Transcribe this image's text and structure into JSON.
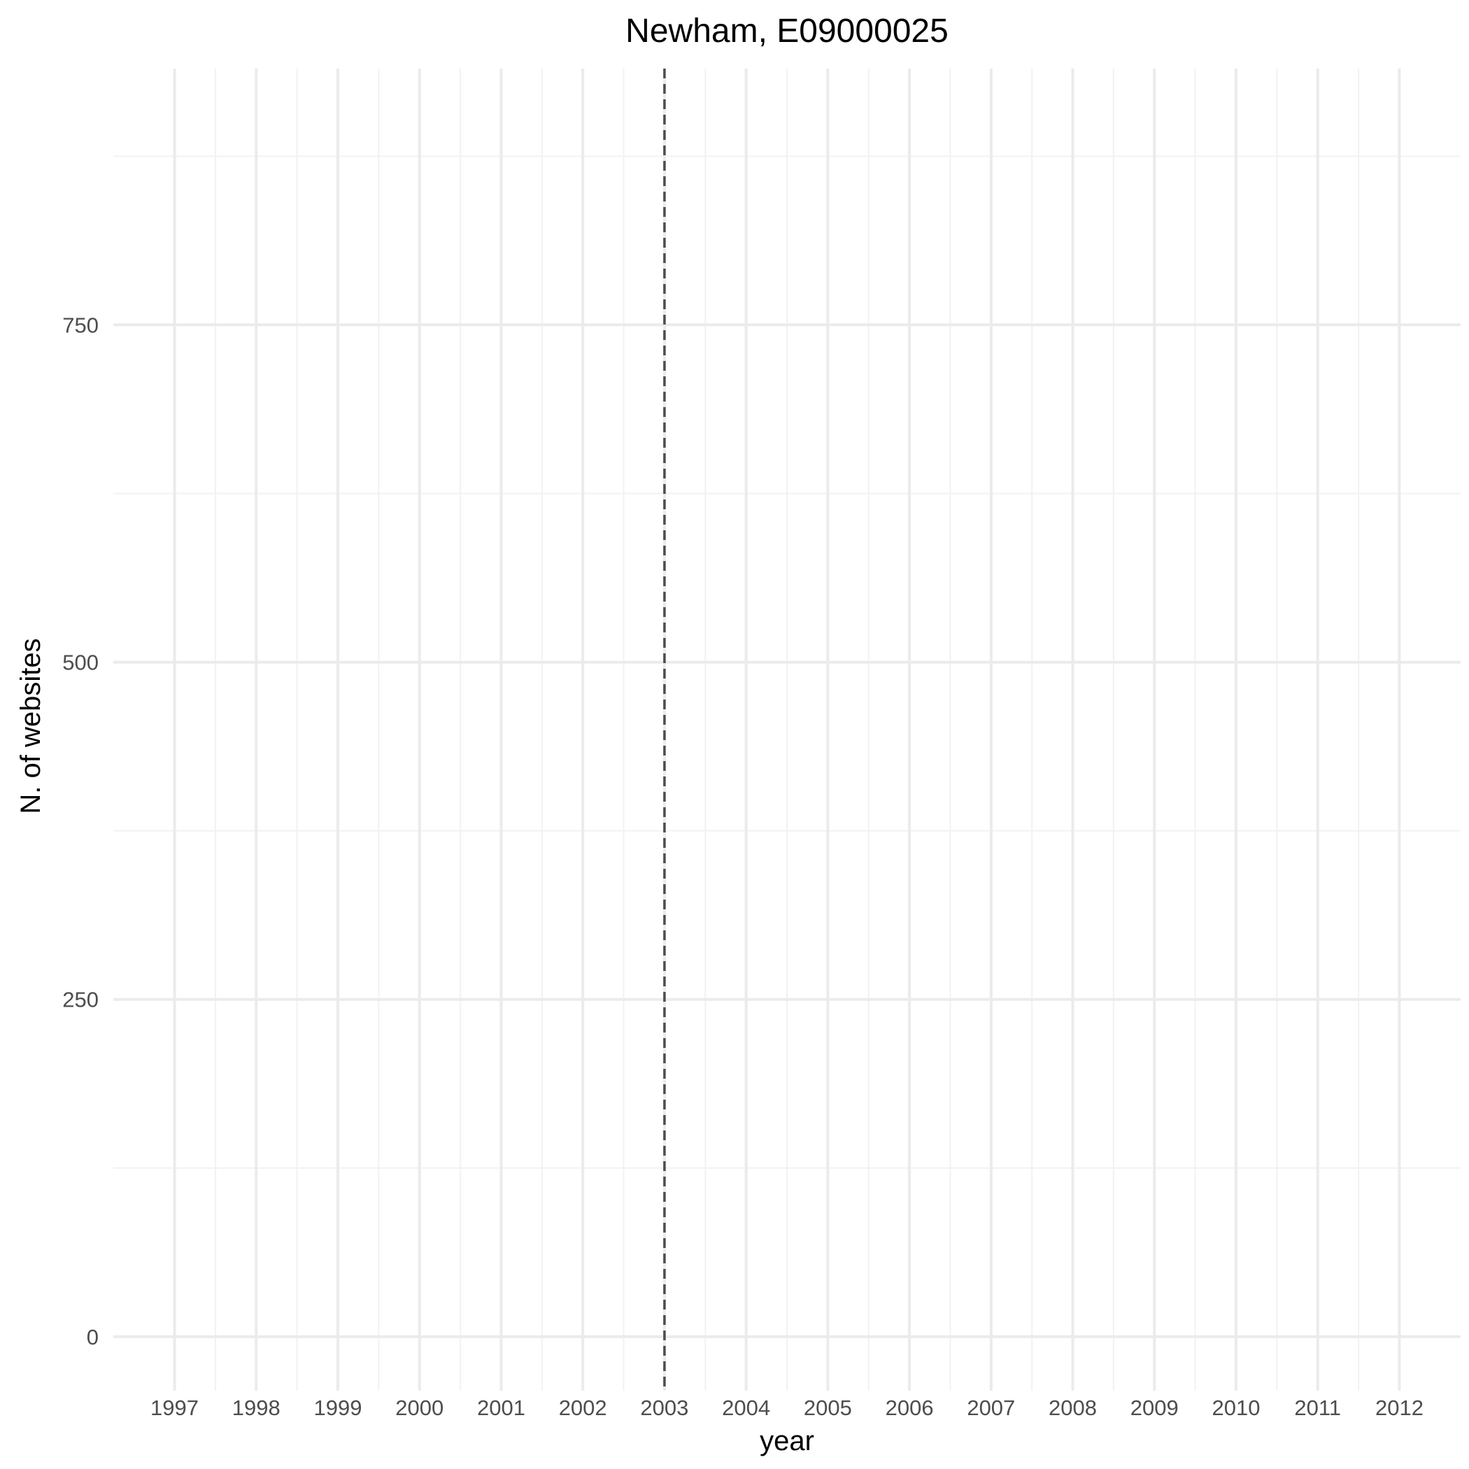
{
  "chart_data": {
    "type": "line",
    "title": "Newham, E09000025",
    "xlabel": "year",
    "ylabel": "N. of websites",
    "x_ticks": [
      "1997",
      "1998",
      "1999",
      "2000",
      "2001",
      "2002",
      "2003",
      "2004",
      "2005",
      "2006",
      "2007",
      "2008",
      "2009",
      "2010",
      "2011",
      "2012"
    ],
    "y_ticks": [
      0,
      250,
      500,
      750
    ],
    "xlim": [
      1996.25,
      2012.75
    ],
    "ylim": [
      -40,
      940
    ],
    "series": [],
    "reference_line": {
      "x": 2003,
      "style": "dashed",
      "color": "#4d4d4d"
    },
    "grid": true,
    "legend": "none"
  }
}
